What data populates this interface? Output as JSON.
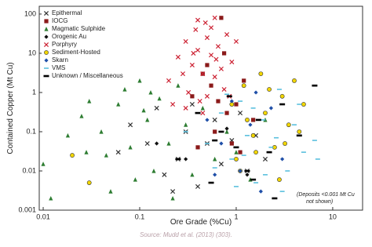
{
  "chart_data": {
    "type": "scatter",
    "x_label": "Ore Grade (%Cu)",
    "y_label": "Contained Copper (Mt Cu)",
    "annotation": [
      "(Deposits <0.001 Mt Cu",
      "not shown)"
    ],
    "source": "Source: Mudd et al. (2013) (303).",
    "x_log": true,
    "y_log": true,
    "legend": "upper left",
    "xlim": [
      0.0091,
      20.4
    ],
    "ylim": [
      0.001,
      158
    ],
    "xticks": [
      0.01,
      0.1,
      1,
      10
    ],
    "yticks": [
      0.001,
      0.01,
      0.1,
      1,
      10,
      100
    ],
    "series": [
      {
        "name": "Epithermal",
        "color": "#333333",
        "marker": "x",
        "x": [
          0.06,
          0.08,
          0.12,
          0.18,
          0.25,
          0.3,
          0.4,
          0.5,
          0.6,
          0.7,
          0.9,
          1.1,
          1.3,
          1.6,
          2.0,
          0.35,
          0.22,
          0.15
        ],
        "y": [
          0.03,
          0.15,
          0.05,
          0.008,
          0.02,
          0.1,
          0.004,
          0.05,
          0.2,
          0.015,
          0.06,
          0.3,
          0.01,
          0.08,
          0.02,
          0.5,
          0.003,
          0.4
        ]
      },
      {
        "name": "IOCG",
        "color": "#8b1a1a",
        "marker": "square",
        "x": [
          0.35,
          0.45,
          0.55,
          0.7,
          0.8,
          1.0,
          1.2,
          0.6,
          0.9,
          1.5,
          0.4,
          0.75,
          1.1,
          0.5,
          0.65
        ],
        "y": [
          0.8,
          3,
          1.5,
          80,
          0.3,
          0.5,
          2,
          0.1,
          0.05,
          0.2,
          0.04,
          10,
          0.03,
          5,
          0.6
        ]
      },
      {
        "name": "Magmatic Sulphide",
        "color": "#2e7d32",
        "marker": "triangle",
        "x": [
          0.01,
          0.012,
          0.018,
          0.025,
          0.03,
          0.04,
          0.05,
          0.06,
          0.07,
          0.08,
          0.1,
          0.12,
          0.14,
          0.16,
          0.2,
          0.25,
          0.3,
          0.35,
          0.45,
          0.6,
          0.8,
          1.0,
          1.4,
          2.0,
          0.09,
          0.045,
          0.11,
          0.22,
          0.13,
          0.028
        ],
        "y": [
          0.015,
          0.002,
          0.08,
          0.25,
          0.6,
          0.1,
          0.003,
          0.5,
          1.2,
          0.04,
          2,
          0.2,
          0.01,
          0.7,
          0.05,
          1.5,
          0.15,
          0.008,
          0.4,
          0.02,
          0.1,
          0.03,
          0.006,
          0.2,
          0.006,
          0.025,
          0.35,
          0.002,
          1.0,
          0.03
        ]
      },
      {
        "name": "Orogenic Au",
        "color": "#111111",
        "marker": "diamond",
        "x": [
          0.15,
          0.3,
          0.8,
          1.3
        ],
        "y": [
          0.05,
          0.02,
          0.12,
          0.008
        ]
      },
      {
        "name": "Porphyry",
        "color": "#cc2233",
        "marker": "x",
        "x": [
          0.2,
          0.25,
          0.3,
          0.32,
          0.35,
          0.38,
          0.4,
          0.42,
          0.45,
          0.48,
          0.5,
          0.55,
          0.6,
          0.65,
          0.7,
          0.8,
          0.9,
          0.3,
          0.5,
          0.6,
          0.4,
          0.28,
          0.75,
          0.55,
          0.45,
          0.36,
          0.22,
          1.0,
          0.85,
          0.62
        ],
        "y": [
          2,
          8,
          20,
          1,
          5,
          40,
          12,
          0.6,
          3,
          60,
          25,
          9,
          80,
          15,
          4,
          30,
          6,
          0.4,
          0.8,
          2.5,
          70,
          3,
          1.2,
          45,
          0.3,
          10,
          0.5,
          20,
          0.8,
          7
        ]
      },
      {
        "name": "Sediment-Hosted",
        "color": "#f2d600",
        "marker": "circle",
        "x": [
          0.9,
          1.0,
          1.2,
          1.5,
          1.8,
          2.0,
          2.5,
          3.0,
          3.5,
          4.0,
          5.0,
          1.1,
          1.6,
          2.2,
          2.8,
          0.02,
          0.03,
          1.3,
          3.2,
          4.5
        ],
        "y": [
          0.5,
          0.02,
          1.5,
          0.08,
          3,
          0.3,
          0.04,
          0.8,
          0.15,
          2,
          0.5,
          0.01,
          0.03,
          1.2,
          0.006,
          0.025,
          0.005,
          0.2,
          0.05,
          0.1
        ]
      },
      {
        "name": "Skarn",
        "color": "#1f4fa8",
        "marker": "diamond",
        "x": [
          0.5,
          0.7,
          0.9,
          1.1,
          1.4,
          1.8,
          2.3,
          3.0,
          0.6,
          1.6
        ],
        "y": [
          0.2,
          0.05,
          0.6,
          0.01,
          0.15,
          0.003,
          0.4,
          0.02,
          0.008,
          1.0
        ]
      },
      {
        "name": "VMS",
        "color": "#5bc0de",
        "marker": "dash",
        "x": [
          0.3,
          0.5,
          0.7,
          0.9,
          1.1,
          1.3,
          1.6,
          1.9,
          2.3,
          2.8,
          3.4,
          4.0,
          5.0,
          6.5,
          0.6,
          1.0,
          1.5,
          2.0,
          2.6,
          3.0,
          4.5,
          0.8,
          1.2,
          7.0
        ],
        "y": [
          0.1,
          0.05,
          0.3,
          0.02,
          0.6,
          0.08,
          0.005,
          0.2,
          0.04,
          1.2,
          0.01,
          0.15,
          0.03,
          0.06,
          0.012,
          0.004,
          0.4,
          0.008,
          0.07,
          0.003,
          0.5,
          0.9,
          0.025,
          0.02
        ]
      },
      {
        "name": "Unknown / Miscellaneous",
        "color": "#000000",
        "marker": "bar",
        "x": [
          0.25,
          0.4,
          0.55,
          0.7,
          0.85,
          1.0,
          1.3,
          1.7,
          2.2,
          3.0,
          4.5,
          6.5,
          0.6,
          1.5,
          2.5
        ],
        "y": [
          0.02,
          0.3,
          0.005,
          0.1,
          0.8,
          0.04,
          0.01,
          0.2,
          0.03,
          0.5,
          0.08,
          1.5,
          0.06,
          0.006,
          0.002
        ]
      }
    ]
  }
}
